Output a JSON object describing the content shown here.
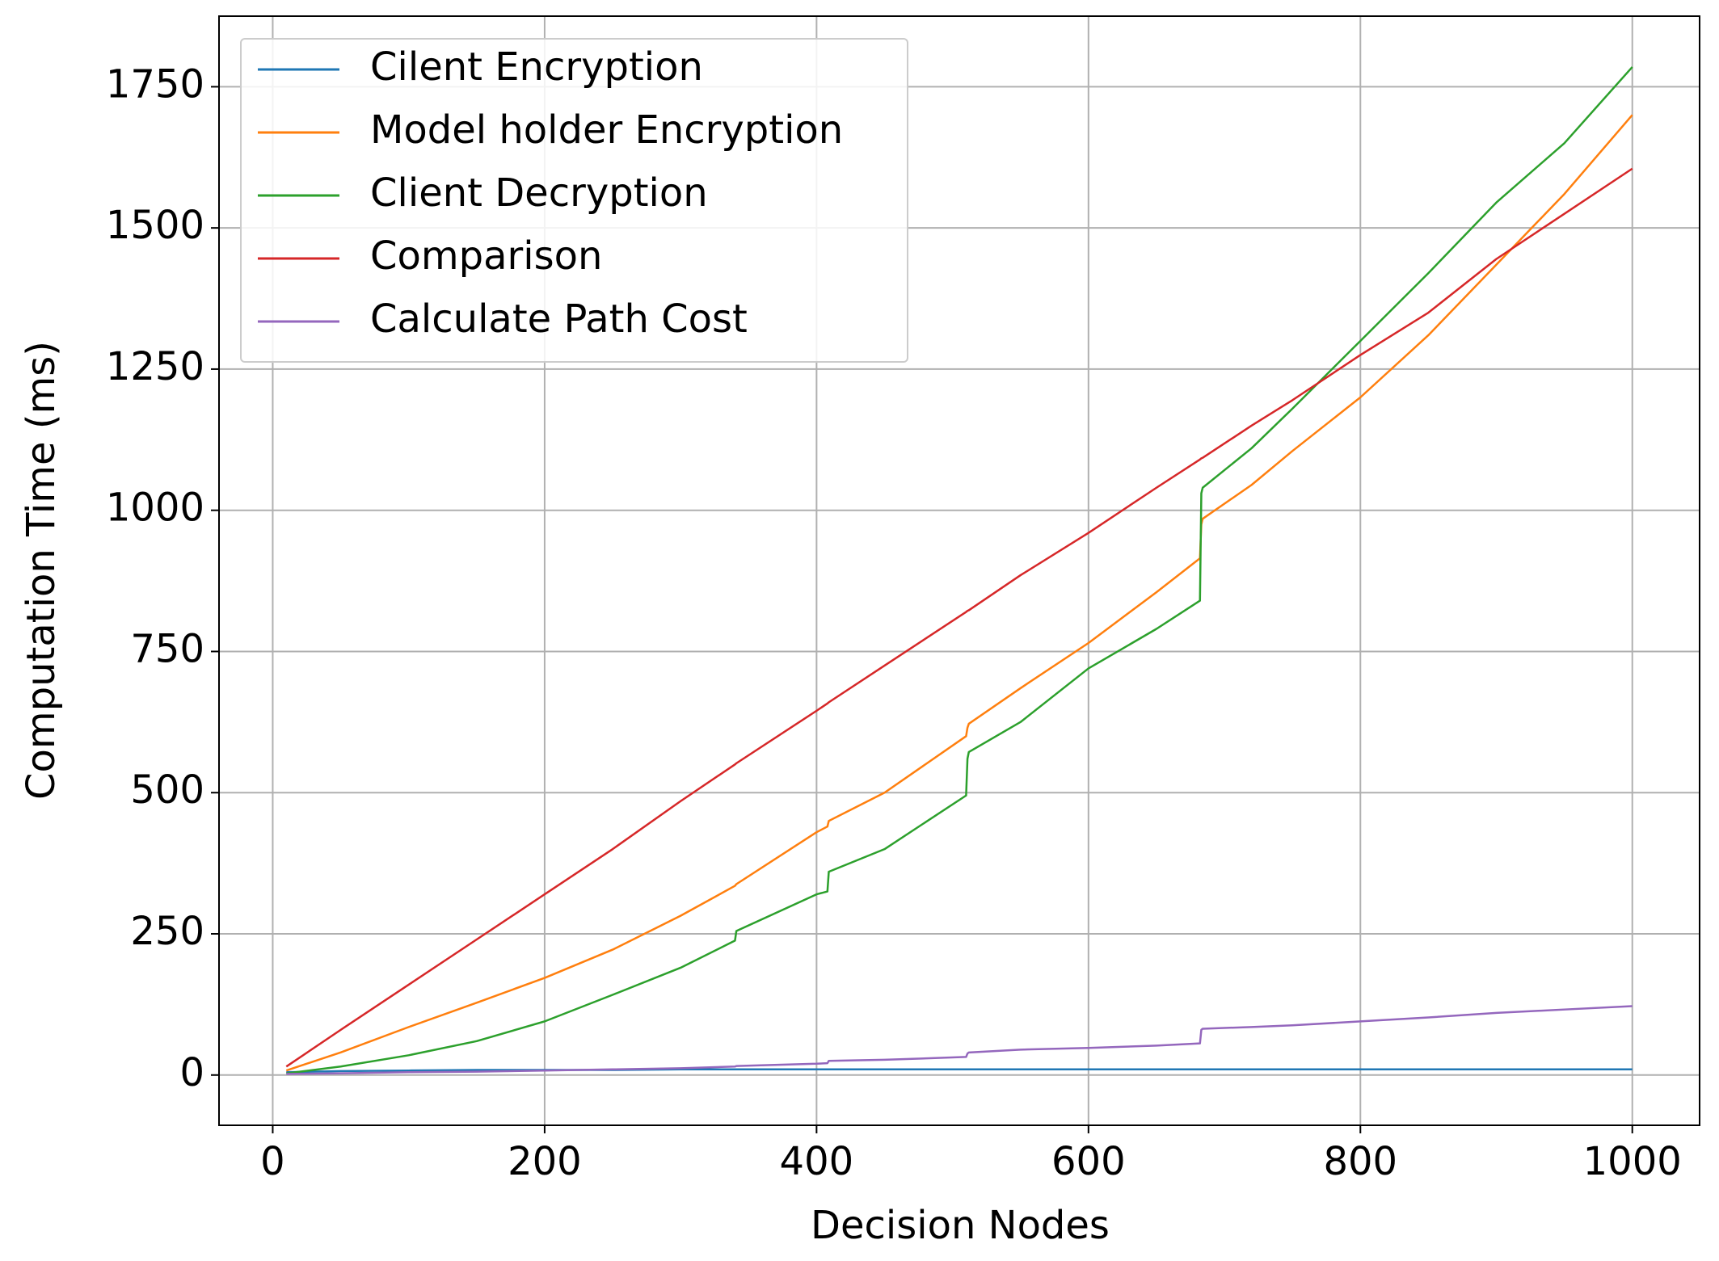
{
  "chart_data": {
    "type": "line",
    "xlabel": "Decision Nodes",
    "ylabel": "Computation Time (ms)",
    "x": [
      10,
      50,
      100,
      150,
      200,
      250,
      300,
      340,
      341,
      400,
      408,
      409,
      450,
      510,
      511,
      512,
      550,
      600,
      650,
      682,
      683,
      684,
      720,
      750,
      800,
      850,
      900,
      950,
      1000
    ],
    "series": [
      {
        "name": "Cilent Encryption",
        "color": "#1f77b4",
        "values": [
          5,
          7,
          8,
          9,
          9,
          9,
          10,
          10,
          10,
          10,
          10,
          10,
          10,
          10,
          10,
          10,
          10,
          10,
          10,
          10,
          10,
          10,
          10,
          10,
          10,
          10,
          10,
          10,
          10
        ]
      },
      {
        "name": "Model holder Encryption",
        "color": "#ff7f0e",
        "values": [
          8,
          40,
          85,
          128,
          172,
          222,
          282,
          335,
          338,
          430,
          440,
          450,
          500,
          600,
          615,
          622,
          685,
          765,
          855,
          915,
          975,
          985,
          1045,
          1105,
          1200,
          1310,
          1435,
          1560,
          1700
        ]
      },
      {
        "name": "Client Decryption",
        "color": "#2ca02c",
        "values": [
          3,
          15,
          35,
          60,
          95,
          142,
          190,
          238,
          255,
          320,
          325,
          360,
          400,
          495,
          560,
          572,
          625,
          720,
          790,
          840,
          1030,
          1040,
          1110,
          1180,
          1300,
          1420,
          1545,
          1650,
          1785
        ]
      },
      {
        "name": "Comparison",
        "color": "#d62728",
        "values": [
          15,
          80,
          160,
          240,
          320,
          400,
          485,
          550,
          552,
          645,
          658,
          660,
          725,
          820,
          822,
          823,
          885,
          960,
          1040,
          1090,
          1092,
          1093,
          1150,
          1195,
          1275,
          1350,
          1445,
          1525,
          1605
        ]
      },
      {
        "name": "Calculate Path Cost",
        "color": "#9467bd",
        "values": [
          2,
          3,
          5,
          6,
          8,
          10,
          12,
          15,
          16,
          20,
          21,
          25,
          27,
          32,
          38,
          40,
          45,
          48,
          52,
          56,
          80,
          82,
          85,
          88,
          95,
          102,
          110,
          116,
          122
        ]
      }
    ],
    "xlim": [
      -39.5,
      1049.5
    ],
    "xticks": [
      0,
      200,
      400,
      600,
      800,
      1000
    ],
    "ylim": [
      -89,
      1875
    ],
    "yticks": [
      0,
      250,
      500,
      750,
      1000,
      1250,
      1500,
      1750
    ],
    "grid": true,
    "legend": "upper left"
  }
}
